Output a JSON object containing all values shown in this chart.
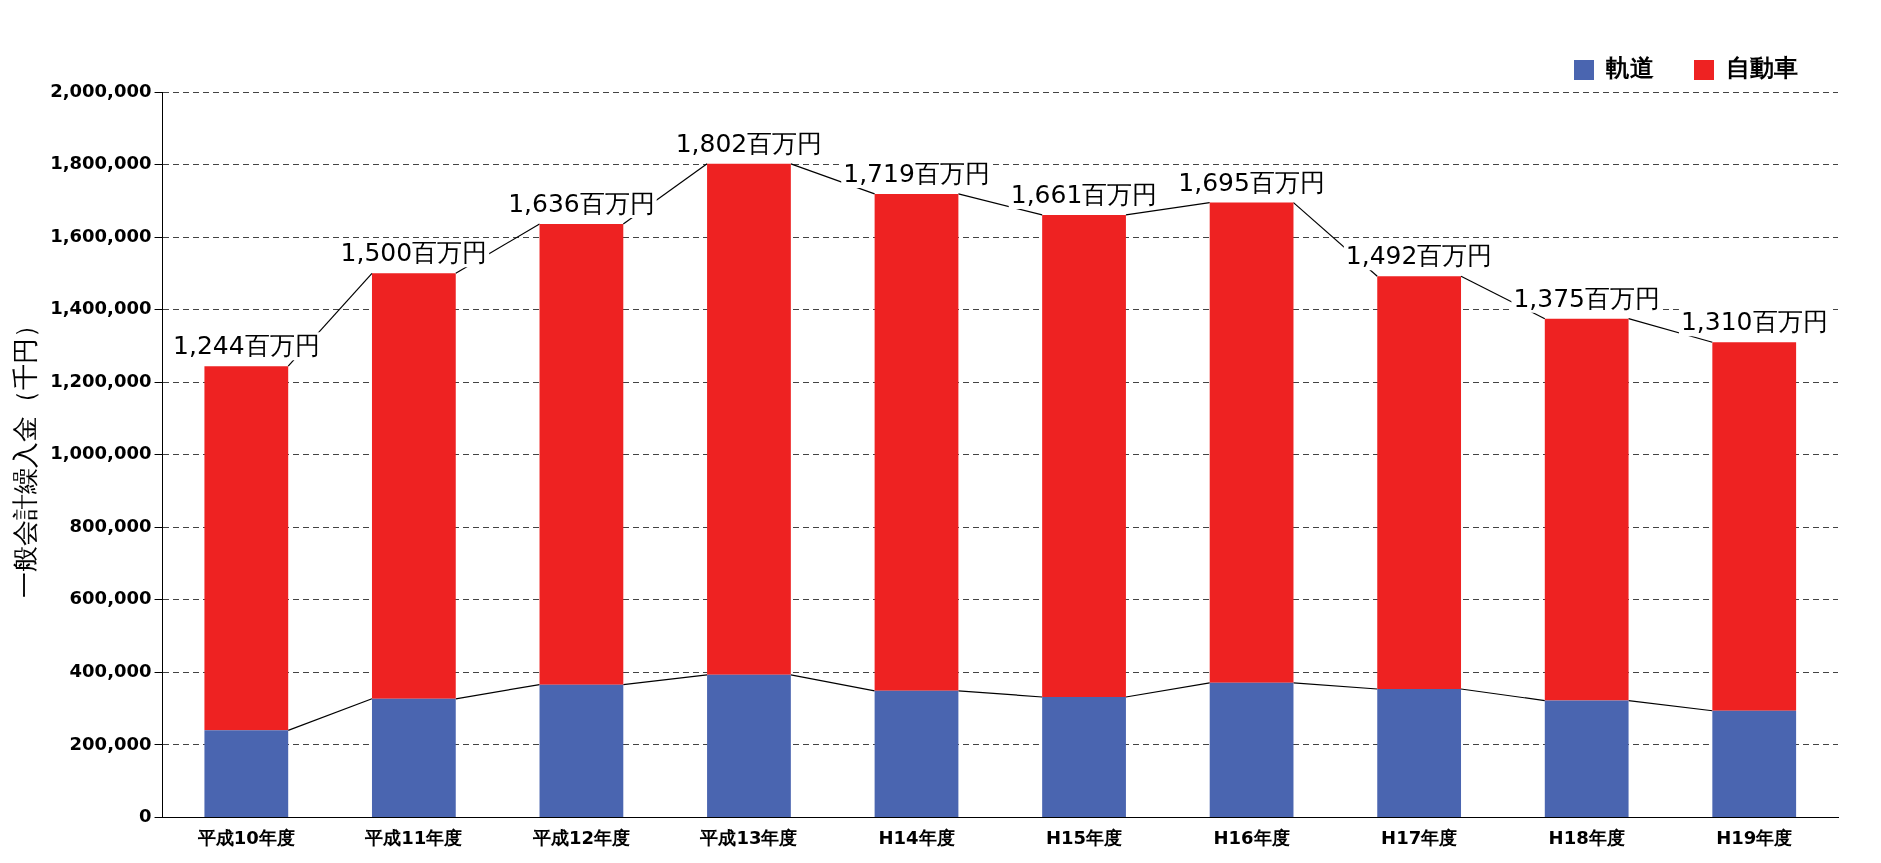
{
  "chart_data": {
    "type": "bar",
    "stacked": true,
    "ylabel": "一般会計繰入金（千円）",
    "categories": [
      "平成10年度",
      "平成11年度",
      "平成12年度",
      "平成13年度",
      "H14年度",
      "H15年度",
      "H16年度",
      "H17年度",
      "H18年度",
      "H19年度"
    ],
    "series": [
      {
        "name": "軌道",
        "color": "#4a65b0",
        "values": [
          240000,
          327000,
          366000,
          393000,
          349000,
          332000,
          371000,
          354000,
          322000,
          294000
        ]
      },
      {
        "name": "自動車",
        "color": "#ee2222",
        "values": [
          1004000,
          1173000,
          1270000,
          1409000,
          1370000,
          1329000,
          1324000,
          1138000,
          1053000,
          1016000
        ]
      }
    ],
    "annotations": [
      {
        "text": "1,244百万円",
        "x": "平成10年度",
        "y": 1244000
      },
      {
        "text": "1,500百万円",
        "x": "平成11年度",
        "y": 1500000
      },
      {
        "text": "1,636百万円",
        "x": "平成12年度",
        "y": 1636000
      },
      {
        "text": "1,802百万円",
        "x": "平成13年度",
        "y": 1802000
      },
      {
        "text": "1,719百万円",
        "x": "H14年度",
        "y": 1719000
      },
      {
        "text": "1,661百万円",
        "x": "H15年度",
        "y": 1661000
      },
      {
        "text": "1,695百万円",
        "x": "H16年度",
        "y": 1695000
      },
      {
        "text": "1,492百万円",
        "x": "H17年度",
        "y": 1492000
      },
      {
        "text": "1,375百万円",
        "x": "H18年度",
        "y": 1375000
      },
      {
        "text": "1,310百万円",
        "x": "H19年度",
        "y": 1310000
      }
    ],
    "ylim": [
      0,
      2000000
    ],
    "yticks": [
      0,
      {
        "value": 200000,
        "label": "200,000"
      },
      {
        "value": 400000,
        "label": "400,000"
      },
      {
        "value": 600000,
        "label": "600,000"
      },
      {
        "value": 800000,
        "label": "800,000"
      },
      {
        "value": 1000000,
        "label": "1,000,000"
      },
      {
        "value": 1200000,
        "label": "1,200,000"
      },
      {
        "value": 1400000,
        "label": "1,400,000"
      },
      {
        "value": 1600000,
        "label": "1,600,000"
      },
      {
        "value": 1800000,
        "label": "1,800,000"
      },
      {
        "value": 2000000,
        "label": "2,000,000"
      }
    ],
    "grid": "y",
    "legend": "top right"
  }
}
